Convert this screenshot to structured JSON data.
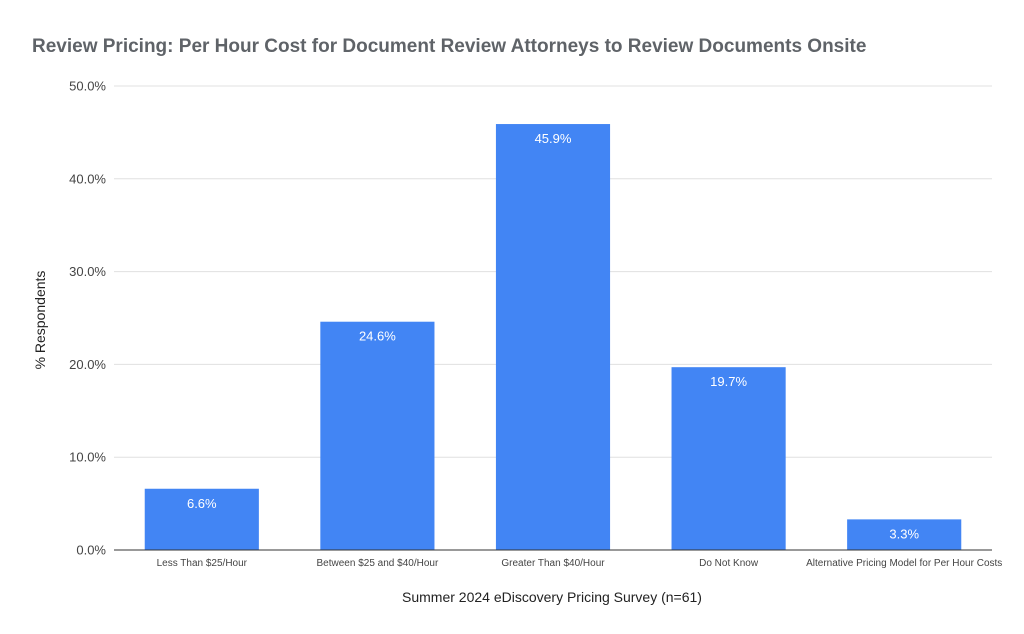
{
  "chart_data": {
    "type": "bar",
    "title": "Review Pricing: Per Hour Cost for Document Review Attorneys to Review Documents Onsite",
    "xlabel": "Summer 2024 eDiscovery Pricing Survey (n=61)",
    "ylabel": "% Respondents",
    "categories": [
      "Less Than $25/Hour",
      "Between $25 and $40/Hour",
      "Greater Than $40/Hour",
      "Do Not Know",
      "Alternative Pricing Model for Per Hour Costs"
    ],
    "values": [
      6.6,
      24.6,
      45.9,
      19.7,
      3.3
    ],
    "data_labels": [
      "6.6%",
      "24.6%",
      "45.9%",
      "19.7%",
      "3.3%"
    ],
    "ylim": [
      0,
      50
    ],
    "yticks": [
      "0.0%",
      "10.0%",
      "20.0%",
      "30.0%",
      "40.0%",
      "50.0%"
    ],
    "grid": true,
    "legend": "none",
    "colors": {
      "bar": "#4285f4",
      "grid": "#e0e0e0",
      "axis": "#333333"
    }
  }
}
